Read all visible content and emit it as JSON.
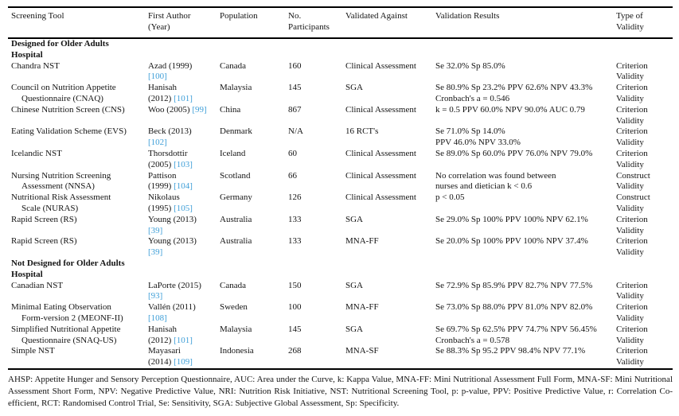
{
  "colors": {
    "link_blue": "#3f9fd8",
    "text": "#141414",
    "rule": "#000000"
  },
  "table": {
    "headers": [
      "Screening Tool",
      "First Author\n(Year)",
      "Population",
      "No.\nParticipants",
      "Validated Against",
      "Validation Results",
      "Type of\nValidity"
    ],
    "sections": [
      {
        "title": "Designed for Older Adults\nHospital",
        "rows": [
          {
            "tool": "Chandra NST",
            "author": "Azad (1999)\n",
            "ref": "[100]",
            "population": "Canada",
            "participants": "160",
            "validated_against": "Clinical Assessment",
            "results": "Se 32.0% Sp 85.0%",
            "validity": "Criterion\nValidity"
          },
          {
            "tool": "Council on Nutrition Appetite\nQuestionnaire (CNAQ)",
            "author": "Hanisah\n(2012) ",
            "ref": "[101]",
            "population": "Malaysia",
            "participants": "145",
            "validated_against": "SGA",
            "results": "Se 80.9% Sp 23.2% PPV 62.6% NPV 43.3%\nCronbach's a = 0.546",
            "validity": "Criterion\nValidity"
          },
          {
            "tool": "Chinese Nutrition Screen (CNS)",
            "author": "Woo (2005) ",
            "ref": "[99]",
            "population": "China",
            "participants": "867",
            "validated_against": "Clinical Assessment",
            "results": "k = 0.5 PPV 60.0% NPV 90.0% AUC 0.79",
            "validity": "Criterion\nValidity"
          },
          {
            "tool": "Eating Validation Scheme (EVS)",
            "author": "Beck (2013)\n",
            "ref": "[102]",
            "population": "Denmark",
            "participants": "N/A",
            "validated_against": "16 RCT's",
            "results": "Se 71.0% Sp 14.0%\nPPV 46.0% NPV 33.0%",
            "validity": "Criterion\nValidity"
          },
          {
            "tool": "Icelandic NST",
            "author": "Thorsdottir\n(2005) ",
            "ref": "[103]",
            "population": "Iceland",
            "participants": "60",
            "validated_against": "Clinical Assessment",
            "results": "Se 89.0% Sp 60.0% PPV 76.0% NPV 79.0%",
            "validity": "Criterion\nValidity"
          },
          {
            "tool": "Nursing Nutrition Screening\nAssessment (NNSA)",
            "author": "Pattison\n(1999) ",
            "ref": "[104]",
            "population": "Scotland",
            "participants": "66",
            "validated_against": "Clinical Assessment",
            "results": "No correlation was found between\nnurses and dietician k < 0.6",
            "validity": "Construct\nValidity"
          },
          {
            "tool": "Nutritional Risk Assessment\nScale (NURAS)",
            "author": "Nikolaus\n(1995) ",
            "ref": "[105]",
            "population": "Germany",
            "participants": "126",
            "validated_against": "Clinical Assessment",
            "results": "p < 0.05",
            "validity": "Construct\nValidity"
          },
          {
            "tool": "Rapid Screen (RS)",
            "author": "Young (2013)\n",
            "ref": "[39]",
            "population": "Australia",
            "participants": "133",
            "validated_against": "SGA",
            "results": "Se 29.0% Sp 100% PPV 100% NPV 62.1%",
            "validity": "Criterion\nValidity"
          },
          {
            "tool": "Rapid Screen (RS)",
            "author": "Young (2013)\n",
            "ref": "[39]",
            "population": "Australia",
            "participants": "133",
            "validated_against": "MNA-FF",
            "results": "Se 20.0% Sp 100% PPV 100% NPV 37.4%",
            "validity": "Criterion\nValidity"
          }
        ]
      },
      {
        "title": "Not Designed for Older Adults\nHospital",
        "rows": [
          {
            "tool": "Canadian NST",
            "author": "LaPorte (2015)\n",
            "ref": "[93]",
            "population": "Canada",
            "participants": "150",
            "validated_against": "SGA",
            "results": "Se 72.9% Sp 85.9% PPV 82.7% NPV 77.5%",
            "validity": "Criterion\nValidity"
          },
          {
            "tool": "Minimal Eating Observation\nForm-version 2 (MEONF-II)",
            "author": "Vallén (2011)\n",
            "ref": "[108]",
            "population": "Sweden",
            "participants": "100",
            "validated_against": "MNA-FF",
            "results": "Se 73.0% Sp 88.0% PPV 81.0% NPV 82.0%",
            "validity": "Criterion\nValidity"
          },
          {
            "tool": "Simplified Nutritional Appetite\nQuestionnaire (SNAQ-US)",
            "author": "Hanisah\n(2012) ",
            "ref": "[101]",
            "population": "Malaysia",
            "participants": "145",
            "validated_against": "SGA",
            "results": "Se 69.7% Sp 62.5% PPV 74.7% NPV 56.45%\nCronbach's a = 0.578",
            "validity": "Criterion\nValidity"
          },
          {
            "tool": "Simple NST",
            "author": "Mayasari\n(2014) ",
            "ref": "[109]",
            "population": "Indonesia",
            "participants": "268",
            "validated_against": "MNA-SF",
            "results": "Se 88.3% Sp 95.2 PPV 98.4% NPV 77.1%",
            "validity": "Criterion\nValidity"
          }
        ]
      }
    ],
    "footnote": "AHSP: Appetite Hunger and Sensory Perception Questionnaire, AUC: Area under the Curve, k: Kappa Value, MNA-FF: Mini Nutritional Assessment Full Form, MNA-SF: Mini Nutritional Assessment Short Form, NPV: Negative Predictive Value, NRI: Nutrition Risk Initiative, NST: Nutritional Screening Tool, p: p-value, PPV: Positive Predictive Value, r: Correlation Co-efficient, RCT: Randomised Control Trial, Se: Sensitivity, SGA: Subjective Global Assessment, Sp: Specificity."
  }
}
